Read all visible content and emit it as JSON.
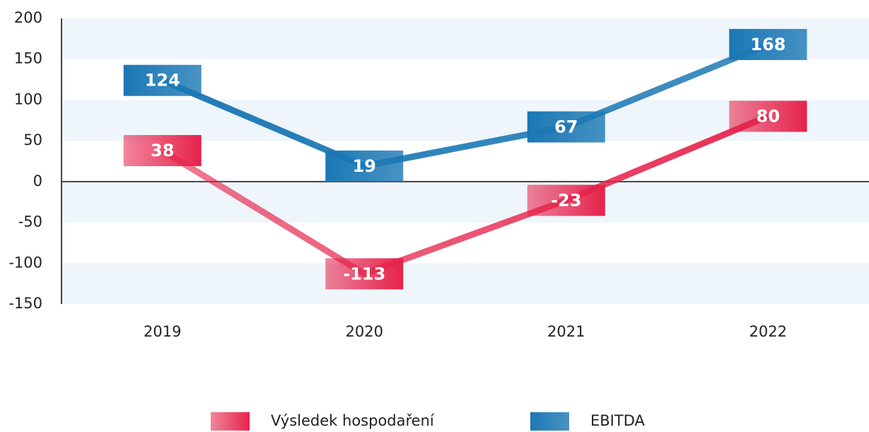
{
  "chart_data": {
    "type": "line",
    "categories": [
      "2019",
      "2020",
      "2021",
      "2022"
    ],
    "series": [
      {
        "name": "Výsledek hospodaření",
        "color": "#e6224a",
        "values": [
          38,
          -113,
          -23,
          80
        ]
      },
      {
        "name": "EBITDA",
        "color": "#1b78b4",
        "values": [
          124,
          19,
          67,
          168
        ]
      }
    ],
    "ylim": [
      -150,
      200
    ],
    "yticks": [
      -150,
      -100,
      -50,
      0,
      50,
      100,
      150,
      200
    ],
    "grid": true,
    "legend": "bottom"
  }
}
